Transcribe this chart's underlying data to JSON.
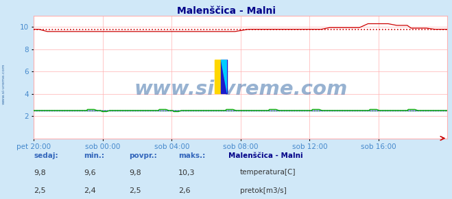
{
  "title": "Malenščica - Malni",
  "bg_color": "#d0e8f8",
  "plot_bg_color": "#ffffff",
  "grid_color": "#ffb0b0",
  "x_labels": [
    "pet 20:00",
    "sob 00:00",
    "sob 04:00",
    "sob 08:00",
    "sob 12:00",
    "sob 16:00"
  ],
  "x_ticks_pos": [
    0,
    72,
    144,
    216,
    288,
    360
  ],
  "total_points": 433,
  "ylim": [
    0,
    11
  ],
  "yticks": [
    2,
    4,
    6,
    8,
    10
  ],
  "temp_avg": 9.8,
  "flow_avg": 2.5,
  "temp_color": "#cc0000",
  "flow_color": "#00aa00",
  "blue_line_color": "#3030cc",
  "purple_line_color": "#8080cc",
  "title_color": "#000088",
  "axis_label_color": "#4488cc",
  "watermark": "www.si-vreme.com",
  "watermark_color": "#1a5599",
  "legend_title": "Malenščica - Malni",
  "legend_color": "#000088",
  "label_color": "#3366bb",
  "value_color": "#333333",
  "headers": [
    "sedaj:",
    "min.:",
    "povpr.:",
    "maks.:"
  ],
  "row1": [
    "9,8",
    "9,6",
    "9,8",
    "10,3"
  ],
  "row2": [
    "2,5",
    "2,4",
    "2,5",
    "2,6"
  ],
  "legend1": "temperatura[C]",
  "legend2": "pretok[m3/s]"
}
